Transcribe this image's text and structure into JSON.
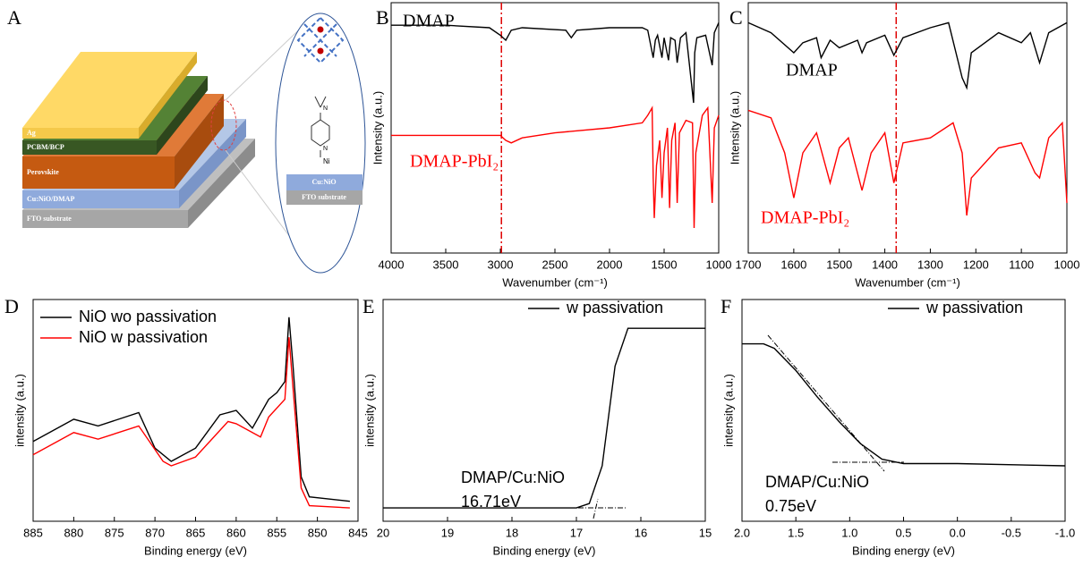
{
  "diagram": {
    "label": "A",
    "layers": [
      "Ag",
      "PCBM/BCP",
      "Perovskite",
      "Cu:NiO/DMAP",
      "FTO substrate"
    ],
    "inset": {
      "atoms": [
        "N",
        "Ni"
      ],
      "layers": [
        "Cu:NiO",
        "FTO substrate"
      ]
    }
  },
  "chart_data": [
    {
      "type": "line",
      "label": "B",
      "xlabel": "Wavenumber (cm⁻¹)",
      "ylabel": "Intensity (a.u.)",
      "xlim": [
        4000,
        1000
      ],
      "xticks": [
        4000,
        3500,
        3000,
        2500,
        2000,
        1500,
        1000
      ],
      "ylim": [
        0,
        100
      ],
      "reference_line_x": 2990,
      "series": [
        {
          "name": "DMAP",
          "color": "#000000",
          "x": [
            4000,
            3500,
            3100,
            3000,
            2950,
            2900,
            2800,
            2400,
            2350,
            2300,
            2000,
            1700,
            1650,
            1600,
            1580,
            1560,
            1520,
            1500,
            1460,
            1440,
            1400,
            1380,
            1350,
            1300,
            1230,
            1220,
            1200,
            1120,
            1060,
            1040,
            1000
          ],
          "values": [
            91,
            91,
            90,
            87,
            85,
            89,
            90,
            89,
            86,
            89,
            90,
            90,
            89,
            78,
            85,
            87,
            78,
            86,
            77,
            86,
            85,
            76,
            86,
            88,
            60,
            80,
            86,
            87,
            75,
            88,
            92
          ]
        },
        {
          "name": "DMAP-PbI₂",
          "color": "#ff0000",
          "x": [
            4000,
            3500,
            3000,
            2950,
            2900,
            2800,
            2500,
            2000,
            1700,
            1650,
            1610,
            1600,
            1590,
            1570,
            1540,
            1520,
            1500,
            1470,
            1450,
            1430,
            1400,
            1380,
            1360,
            1300,
            1240,
            1225,
            1210,
            1150,
            1100,
            1060,
            1040,
            1000
          ],
          "values": [
            47,
            47,
            47,
            45,
            44,
            46,
            48,
            50,
            52,
            55,
            58,
            30,
            14,
            35,
            45,
            22,
            40,
            50,
            18,
            45,
            52,
            20,
            48,
            53,
            52,
            10,
            40,
            55,
            58,
            20,
            50,
            55
          ]
        }
      ]
    },
    {
      "type": "line",
      "label": "C",
      "xlabel": "Wavenumber (cm⁻¹)",
      "ylabel": "Intensity (a.u.)",
      "xlim": [
        1700,
        1000
      ],
      "xticks": [
        1700,
        1600,
        1500,
        1400,
        1300,
        1200,
        1100,
        1000
      ],
      "ylim": [
        0,
        100
      ],
      "reference_line_x": 1375,
      "series": [
        {
          "name": "DMAP",
          "color": "#000000",
          "x": [
            1700,
            1650,
            1600,
            1580,
            1550,
            1540,
            1520,
            1500,
            1460,
            1450,
            1440,
            1400,
            1380,
            1360,
            1300,
            1260,
            1230,
            1220,
            1210,
            1150,
            1100,
            1080,
            1060,
            1040,
            1000
          ],
          "values": [
            92,
            88,
            80,
            84,
            86,
            78,
            85,
            82,
            85,
            80,
            84,
            87,
            79,
            86,
            90,
            92,
            70,
            66,
            80,
            88,
            84,
            88,
            76,
            88,
            92
          ]
        },
        {
          "name": "DMAP-PbI₂",
          "color": "#ff0000",
          "x": [
            1700,
            1650,
            1620,
            1600,
            1580,
            1550,
            1520,
            1500,
            1480,
            1450,
            1430,
            1400,
            1380,
            1360,
            1300,
            1250,
            1230,
            1220,
            1210,
            1150,
            1100,
            1070,
            1060,
            1040,
            1010,
            1000
          ],
          "values": [
            57,
            54,
            40,
            22,
            40,
            48,
            28,
            42,
            46,
            25,
            40,
            48,
            28,
            44,
            46,
            52,
            40,
            15,
            30,
            42,
            44,
            32,
            30,
            46,
            52,
            20
          ]
        }
      ]
    },
    {
      "type": "line",
      "label": "D",
      "xlabel": "Binding energy (eV)",
      "ylabel": "intensity (a.u.)",
      "xlim": [
        885,
        845
      ],
      "xticks": [
        885,
        880,
        875,
        870,
        865,
        860,
        855,
        850,
        845
      ],
      "ylim": [
        0,
        100
      ],
      "series": [
        {
          "name": "NiO wo passivation",
          "color": "#000000",
          "x": [
            885,
            880,
            877,
            872,
            870,
            868,
            865,
            862,
            860,
            858,
            856,
            855,
            854,
            853.5,
            853,
            852,
            851,
            846
          ],
          "values": [
            36,
            46,
            43,
            49,
            33,
            27,
            33,
            48,
            50,
            42,
            55,
            58,
            63,
            92,
            70,
            20,
            11,
            9
          ]
        },
        {
          "name": "NiO w passivation",
          "color": "#ff0000",
          "x": [
            885,
            880,
            877,
            872,
            869,
            868,
            865,
            861,
            860,
            857,
            856,
            854,
            853.5,
            853,
            852,
            851,
            846
          ],
          "values": [
            30,
            40,
            37,
            43,
            27,
            25,
            29,
            45,
            44,
            38,
            47,
            55,
            83,
            60,
            15,
            7,
            6
          ]
        }
      ]
    },
    {
      "type": "line",
      "label": "E",
      "xlabel": "Binding energy (eV)",
      "ylabel": "intensity (a.u.)",
      "xlim": [
        20,
        15
      ],
      "xticks": [
        20,
        19,
        18,
        17,
        16,
        15
      ],
      "ylim": [
        0,
        100
      ],
      "annotations": [
        "DMAP/Cu:NiO",
        "16.71eV"
      ],
      "series": [
        {
          "name": "w passivation",
          "color": "#000000",
          "x": [
            20,
            17,
            16.8,
            16.6,
            16.4,
            16.2,
            16.0,
            15
          ],
          "values": [
            6,
            6,
            8,
            25,
            70,
            87,
            87,
            87
          ]
        }
      ]
    },
    {
      "type": "line",
      "label": "F",
      "xlabel": "Binding energy (eV)",
      "ylabel": "intensity (a.u.)",
      "xlim": [
        2,
        -1
      ],
      "xticks": [
        {
          "value": 2,
          "label": "2.0"
        },
        {
          "value": 1.5,
          "label": "1.5"
        },
        {
          "value": 1,
          "label": "1.0"
        },
        {
          "value": 0.5,
          "label": "0.5"
        },
        {
          "value": 0,
          "label": "0.0"
        },
        {
          "value": -0.5,
          "label": "-0.5"
        },
        {
          "value": -1,
          "label": "-1.0"
        }
      ],
      "ylim": [
        0,
        100
      ],
      "annotations": [
        "DMAP/Cu:NiO",
        "0.75eV"
      ],
      "series": [
        {
          "name": "w passivation",
          "color": "#000000",
          "x": [
            2,
            1.8,
            1.7,
            1.5,
            1.3,
            1.1,
            0.9,
            0.7,
            0.5,
            0,
            -1
          ],
          "values": [
            80,
            80,
            78,
            68,
            56,
            45,
            35,
            28,
            26,
            26,
            25
          ]
        }
      ]
    }
  ]
}
